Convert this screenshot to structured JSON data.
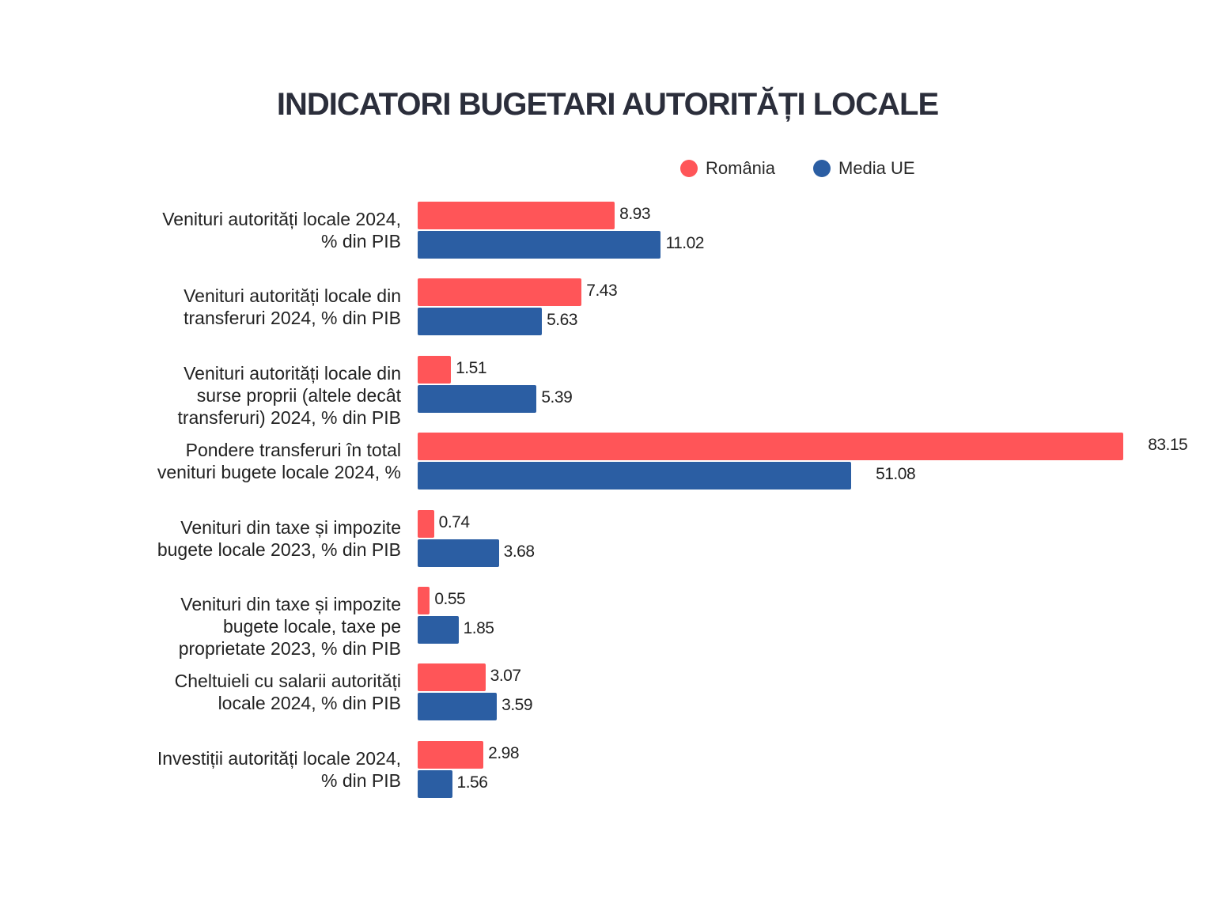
{
  "chart_data": {
    "type": "bar",
    "orientation": "horizontal",
    "title": "INDICATORI BUGETARI AUTORITĂȚI LOCALE",
    "legend_position": "top-right",
    "grid": false,
    "categories": [
      "Venituri autorități locale 2024, \n% din PIB",
      "Venituri autorități locale din\ntransferuri 2024, % din PIB",
      "Venituri autorități locale din\nsurse proprii (altele decât\ntransferuri) 2024, % din PIB",
      "Pondere transferuri în total\nvenituri bugete locale 2024, %",
      "Venituri din taxe și impozite\nbugete locale 2023, % din PIB",
      "Venituri din taxe și impozite\nbugete locale, taxe pe\nproprietate 2023, % din PIB",
      "Cheltuieli cu salarii autorități\nlocale 2024, % din PIB",
      "Investiții autorități locale 2024,\n% din PIB"
    ],
    "series": [
      {
        "name": "România",
        "color": "#FF5558",
        "values": [
          8.93,
          7.43,
          1.51,
          83.15,
          0.74,
          0.55,
          3.07,
          2.98
        ]
      },
      {
        "name": "Media UE",
        "color": "#2B5EA3",
        "values": [
          11.02,
          5.63,
          5.39,
          51.08,
          3.68,
          1.85,
          3.59,
          1.56
        ]
      }
    ]
  }
}
